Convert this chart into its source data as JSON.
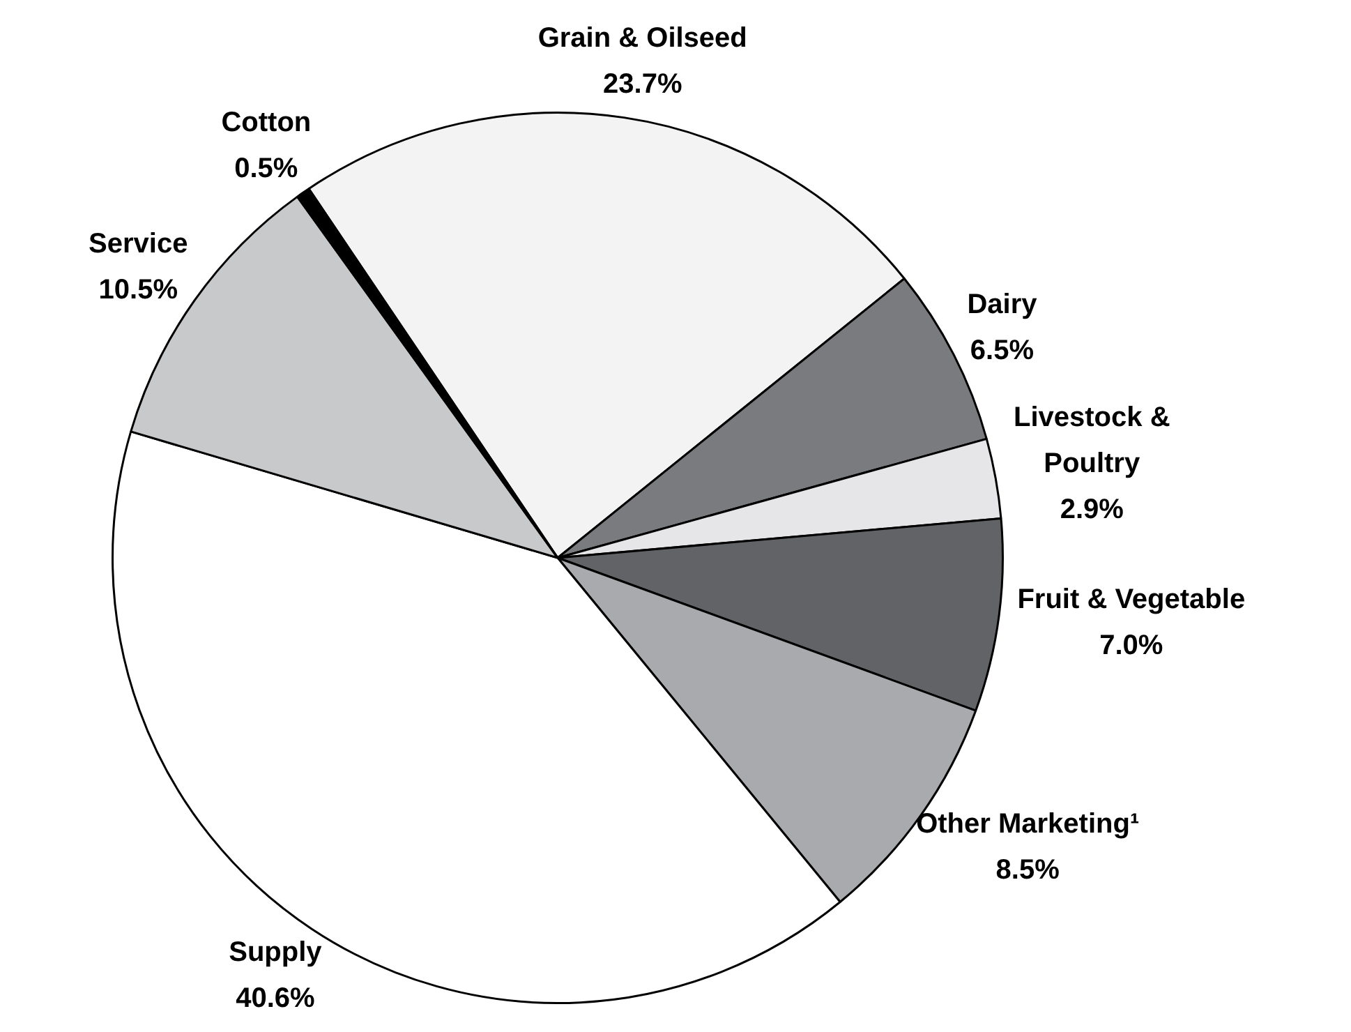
{
  "chart_data": {
    "type": "pie",
    "categories": [
      "Grain & Oilseed",
      "Dairy",
      "Livestock & Poultry",
      "Fruit & Vegetable",
      "Other Marketing¹",
      "Supply",
      "Service",
      "Cotton"
    ],
    "values": [
      23.7,
      6.5,
      2.9,
      7.0,
      8.5,
      40.6,
      10.5,
      0.5
    ],
    "value_labels": [
      "23.7%",
      "6.5%",
      "2.9%",
      "7.0%",
      "8.5%",
      "40.6%",
      "10.5%",
      "0.5%"
    ],
    "colors": [
      "#f2f3f2",
      "#7a7b7f",
      "#e6e6e8",
      "#626367",
      "#a9aaad",
      "#ffffff",
      "#c8c9cb",
      "#000000"
    ]
  }
}
